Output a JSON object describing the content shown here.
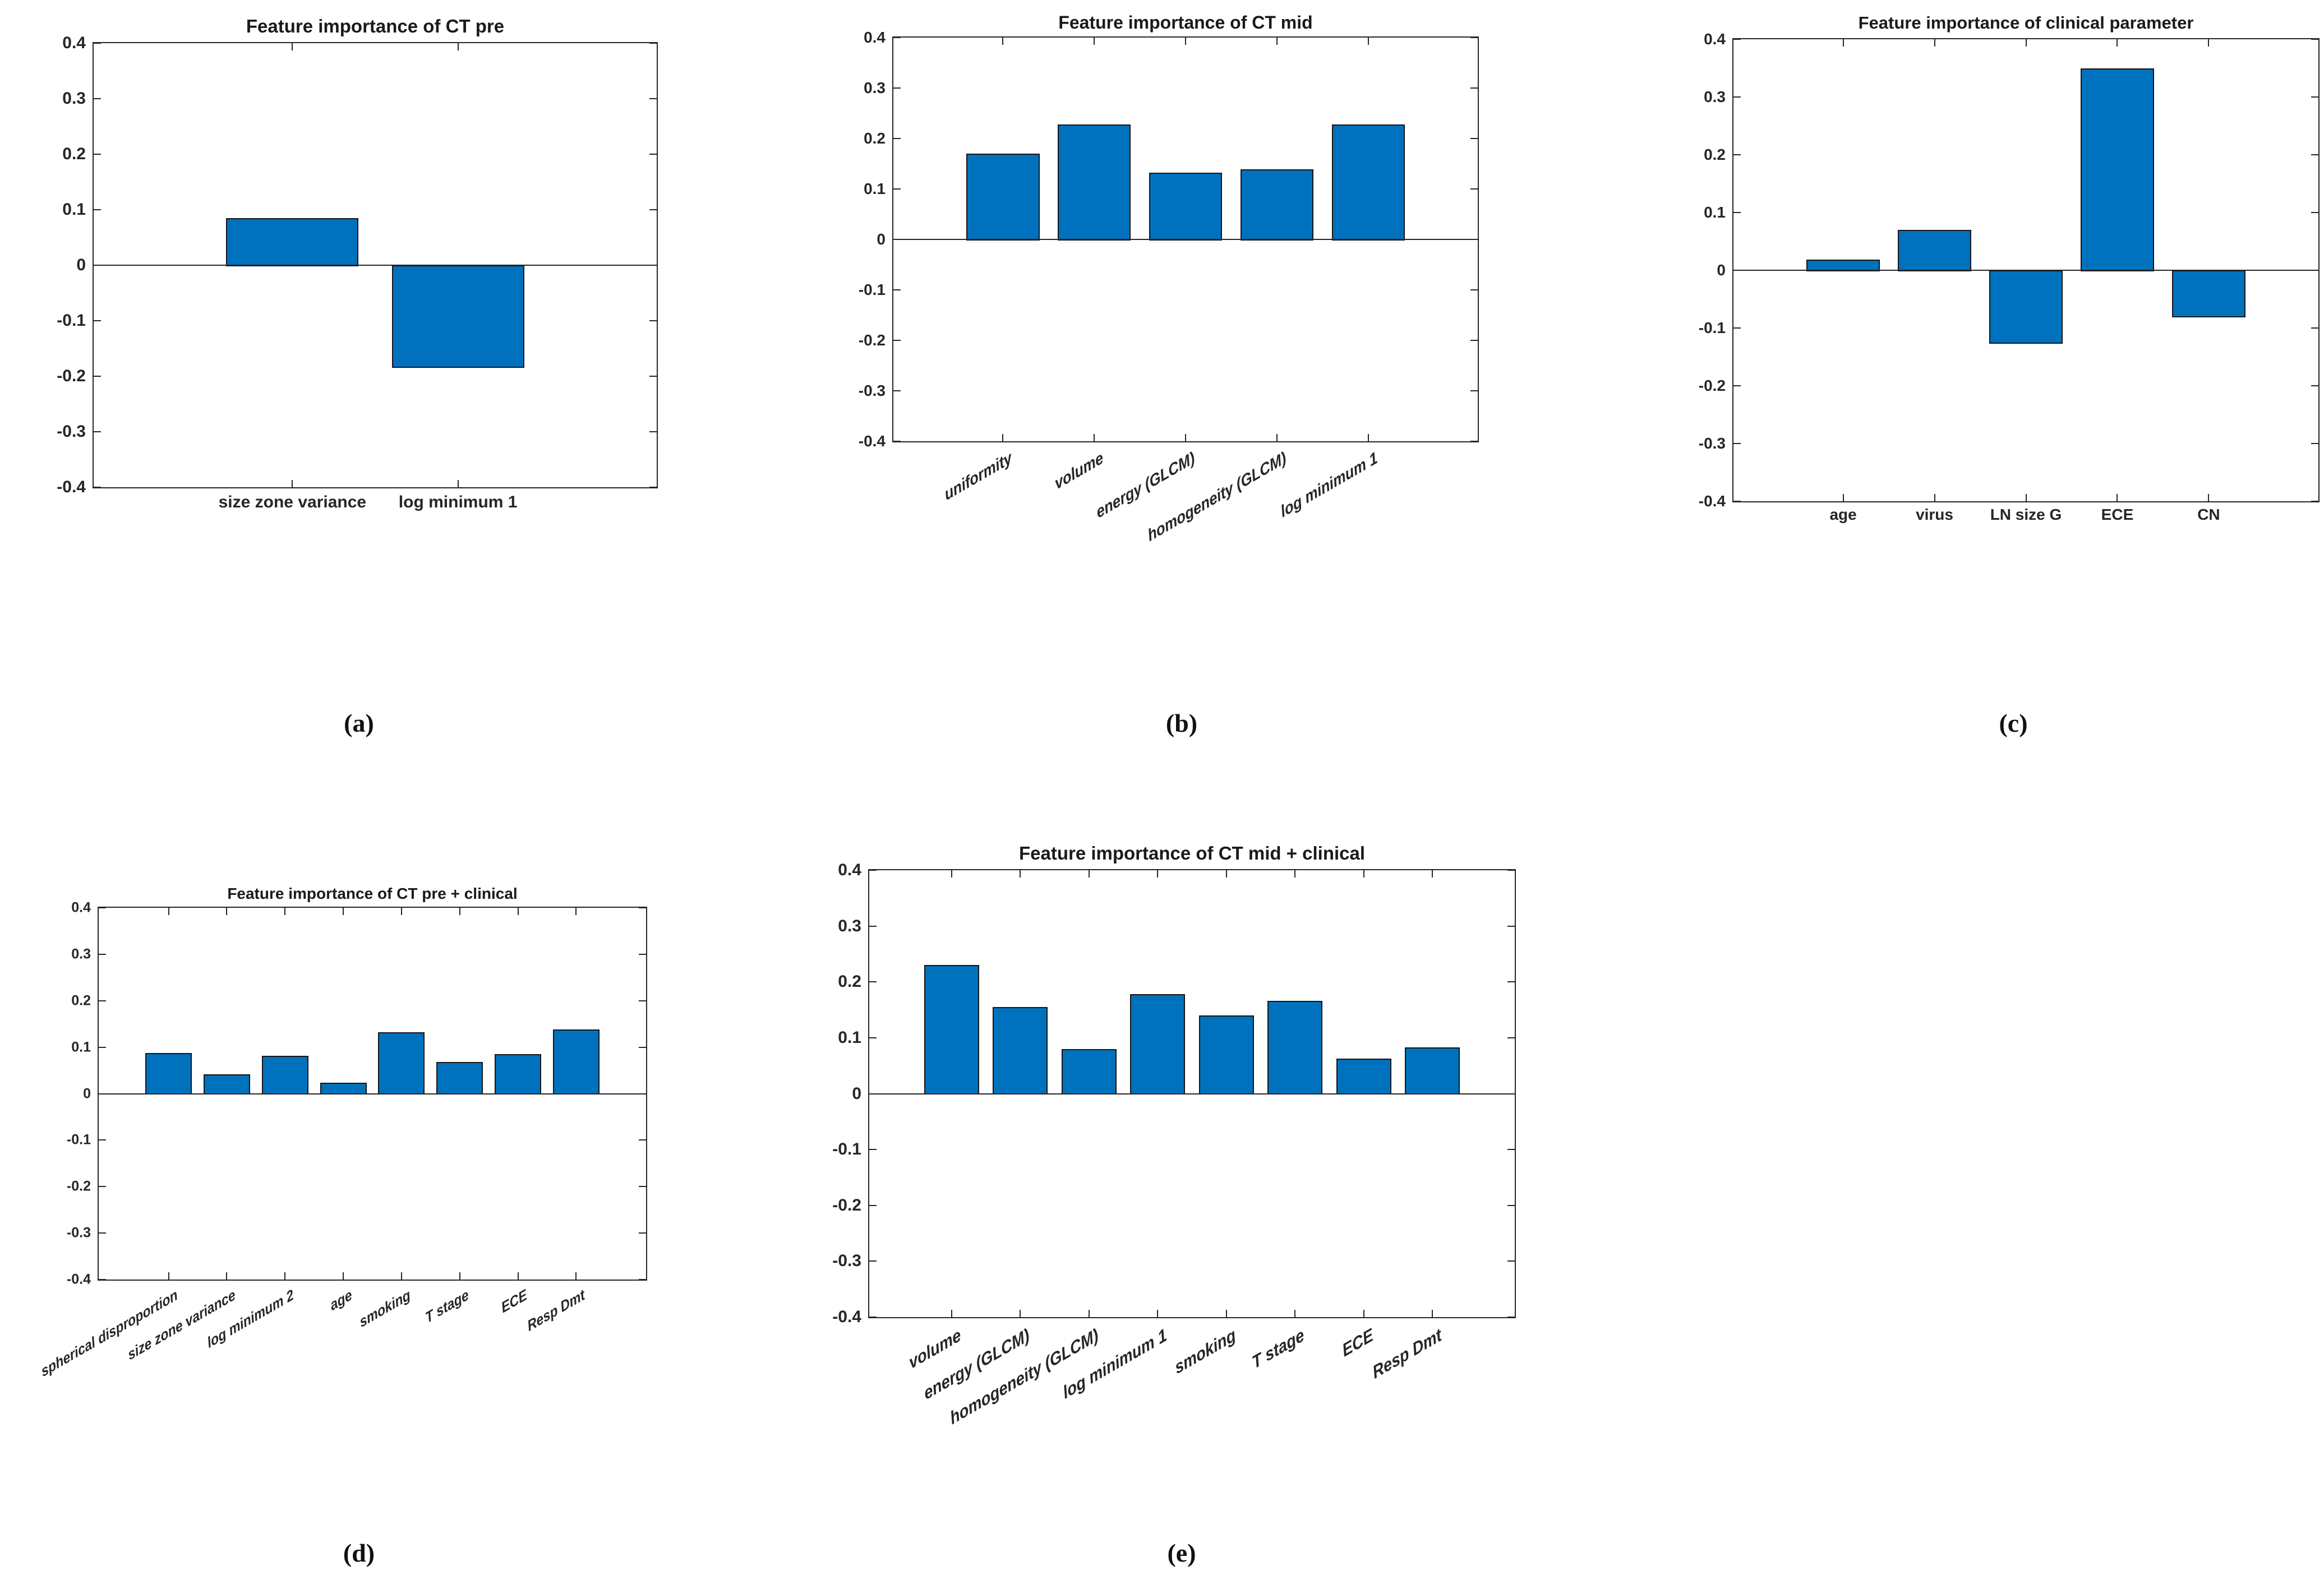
{
  "colors": {
    "bar_fill": "#0072BD",
    "bar_edge": "#151519",
    "axis": "#262626",
    "tick_text": "#262626",
    "title_text": "#1a1a1a",
    "panel_text": "#111111"
  },
  "chart_data": [
    {
      "type": "bar",
      "panel": "(a)",
      "title": "Feature importance of CT pre",
      "categories": [
        "size zone variance",
        "log minimum 1"
      ],
      "values": [
        0.085,
        -0.185
      ],
      "xlabel": "",
      "ylabel": "",
      "ylim": [
        -0.4,
        0.4
      ],
      "ytick_step": 0.1,
      "grid": false,
      "legend": null,
      "tick_label_rotation_deg": 0
    },
    {
      "type": "bar",
      "panel": "(b)",
      "title": "Feature importance of CT mid",
      "categories": [
        "uniformity",
        "volume",
        "energy (GLCM)",
        "homogeneity (GLCM)",
        "log minimum 1"
      ],
      "values": [
        0.17,
        0.228,
        0.132,
        0.139,
        0.228
      ],
      "xlabel": "",
      "ylabel": "",
      "ylim": [
        -0.4,
        0.4
      ],
      "ytick_step": 0.1,
      "grid": false,
      "legend": null,
      "tick_label_rotation_deg": 30
    },
    {
      "type": "bar",
      "panel": "(c)",
      "title": "Feature importance of clinical parameter",
      "categories": [
        "age",
        "virus",
        "LN size G",
        "ECE",
        "CN"
      ],
      "values": [
        0.018,
        0.07,
        -0.127,
        0.35,
        -0.082
      ],
      "xlabel": "",
      "ylabel": "",
      "ylim": [
        -0.4,
        0.4
      ],
      "ytick_step": 0.1,
      "grid": false,
      "legend": null,
      "tick_label_rotation_deg": 0
    },
    {
      "type": "bar",
      "panel": "(d)",
      "title": "Feature importance of CT pre + clinical",
      "categories": [
        "spherical disproportion",
        "size zone variance",
        "log minimum 2",
        "age",
        "smoking",
        "T stage",
        "ECE",
        "Resp Dmt"
      ],
      "values": [
        0.087,
        0.042,
        0.082,
        0.023,
        0.132,
        0.068,
        0.085,
        0.138
      ],
      "xlabel": "",
      "ylabel": "",
      "ylim": [
        -0.4,
        0.4
      ],
      "ytick_step": 0.1,
      "grid": false,
      "legend": null,
      "tick_label_rotation_deg": 30
    },
    {
      "type": "bar",
      "panel": "(e)",
      "title": "Feature importance of CT mid + clinical",
      "categories": [
        "volume",
        "energy (GLCM)",
        "homogeneity (GLCM)",
        "log minimum 1",
        "smoking",
        "T stage",
        "ECE",
        "Resp Dmt"
      ],
      "values": [
        0.23,
        0.155,
        0.08,
        0.178,
        0.14,
        0.166,
        0.063,
        0.083
      ],
      "xlabel": "",
      "ylabel": "",
      "ylim": [
        -0.4,
        0.4
      ],
      "ytick_step": 0.1,
      "grid": false,
      "legend": null,
      "tick_label_rotation_deg": 30
    }
  ]
}
